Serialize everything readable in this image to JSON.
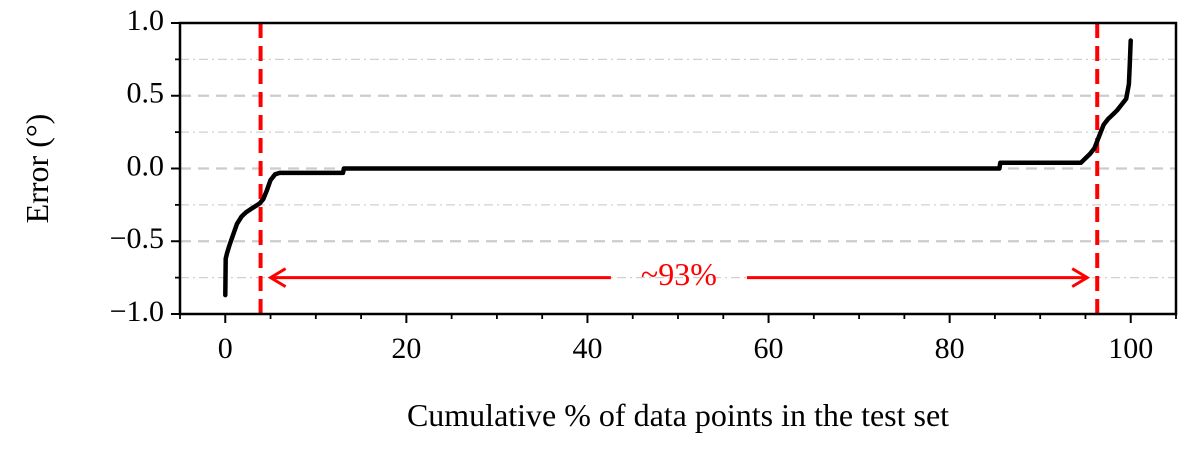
{
  "chart_data": {
    "type": "line",
    "title": "",
    "xlabel": "Cumulative % of data points in the test set",
    "ylabel": "Error (°)",
    "xlim": [
      -5,
      105
    ],
    "ylim": [
      -1.0,
      1.0
    ],
    "x_ticks": [
      0,
      20,
      40,
      60,
      80,
      100
    ],
    "x_tick_labels": [
      "0",
      "20",
      "40",
      "60",
      "80",
      "100"
    ],
    "x_minor_step": 5,
    "y_ticks": [
      -1.0,
      -0.5,
      0.0,
      0.5,
      1.0
    ],
    "y_tick_labels": [
      "−1.0",
      "−0.5",
      "0.0",
      "0.5",
      "1.0"
    ],
    "y_minor_ticks": [
      -0.75,
      -0.25,
      0.25,
      0.75
    ],
    "grid": "horizontal: dashed at major ticks, dash-dot at minor ticks",
    "series": [
      {
        "color": "#000000",
        "x": [
          0,
          0.05,
          0.2,
          0.5,
          0.9,
          1.3,
          1.8,
          2.3,
          2.8,
          3.3,
          3.8,
          4.2,
          4.6,
          5.0,
          5.5,
          6.0,
          10,
          13.0,
          13.1,
          30,
          50,
          70,
          85.5,
          85.6,
          90,
          94.5,
          95.0,
          95.5,
          96.0,
          96.5,
          97.0,
          97.5,
          98.0,
          98.5,
          99.0,
          99.5,
          99.8,
          99.9,
          100
        ],
        "y": [
          -0.87,
          -0.62,
          -0.58,
          -0.52,
          -0.45,
          -0.38,
          -0.33,
          -0.3,
          -0.28,
          -0.26,
          -0.24,
          -0.21,
          -0.15,
          -0.08,
          -0.04,
          -0.03,
          -0.03,
          -0.03,
          0.0,
          0.0,
          0.0,
          0.0,
          0.0,
          0.04,
          0.04,
          0.04,
          0.07,
          0.1,
          0.14,
          0.22,
          0.3,
          0.34,
          0.37,
          0.4,
          0.44,
          0.48,
          0.58,
          0.72,
          0.88
        ]
      }
    ],
    "annotations": {
      "vlines": [
        {
          "x": 3.9,
          "color": "#ff0000",
          "style": "dashed"
        },
        {
          "x": 96.3,
          "color": "#ff0000",
          "style": "dashed"
        }
      ],
      "range_arrow": {
        "x_start": 3.9,
        "x_end": 96.3,
        "y": -0.75,
        "color": "#ff0000",
        "label": "~93%"
      }
    }
  }
}
